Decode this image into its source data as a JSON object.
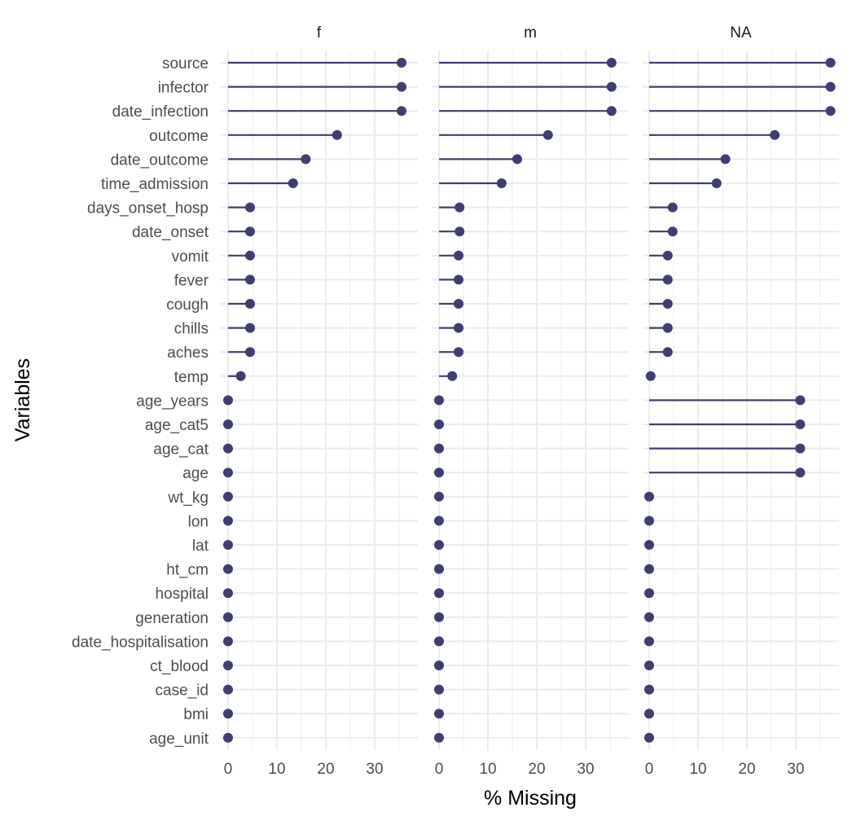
{
  "chart_data": {
    "type": "lollipop",
    "xlabel": "% Missing",
    "ylabel": "Variables",
    "xlim": [
      0,
      38
    ],
    "x_ticks": [
      "0",
      "10",
      "20",
      "30"
    ],
    "x_tick_values": [
      0,
      10,
      20,
      30
    ],
    "grid": true,
    "colors": {
      "mark": "#3e3f70",
      "grid": "#ebebeb",
      "background": "#ffffff"
    },
    "variables": [
      "source",
      "infector",
      "date_infection",
      "outcome",
      "date_outcome",
      "time_admission",
      "days_onset_hosp",
      "date_onset",
      "vomit",
      "fever",
      "cough",
      "chills",
      "aches",
      "temp",
      "age_years",
      "age_cat5",
      "age_cat",
      "age",
      "wt_kg",
      "lon",
      "lat",
      "ht_cm",
      "hospital",
      "generation",
      "date_hospitalisation",
      "ct_blood",
      "case_id",
      "bmi",
      "age_unit"
    ],
    "panels": [
      {
        "label": "f",
        "values": [
          35.5,
          35.5,
          35.5,
          22.3,
          15.9,
          13.3,
          4.5,
          4.5,
          4.5,
          4.5,
          4.5,
          4.5,
          4.5,
          2.6,
          0,
          0,
          0,
          0,
          0,
          0,
          0,
          0,
          0,
          0,
          0,
          0,
          0,
          0,
          0
        ]
      },
      {
        "label": "m",
        "values": [
          35.3,
          35.3,
          35.3,
          22.3,
          16.0,
          12.8,
          4.2,
          4.2,
          4.0,
          4.0,
          4.0,
          4.0,
          4.0,
          2.7,
          0,
          0,
          0,
          0,
          0,
          0,
          0,
          0,
          0,
          0,
          0,
          0,
          0,
          0,
          0
        ]
      },
      {
        "label": "NA",
        "values": [
          37.1,
          37.1,
          37.1,
          25.7,
          15.6,
          13.8,
          4.8,
          4.8,
          3.8,
          3.8,
          3.8,
          3.8,
          3.8,
          0.3,
          30.9,
          30.9,
          30.9,
          30.9,
          0,
          0,
          0,
          0,
          0,
          0,
          0,
          0,
          0,
          0,
          0
        ]
      }
    ]
  }
}
